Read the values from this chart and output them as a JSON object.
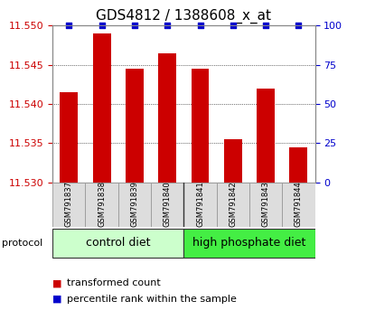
{
  "title": "GDS4812 / 1388608_x_at",
  "samples": [
    "GSM791837",
    "GSM791838",
    "GSM791839",
    "GSM791840",
    "GSM791841",
    "GSM791842",
    "GSM791843",
    "GSM791844"
  ],
  "transformed_counts": [
    11.5415,
    11.549,
    11.5445,
    11.5465,
    11.5445,
    11.5355,
    11.542,
    11.5345
  ],
  "percentile_ranks": [
    100,
    100,
    100,
    100,
    100,
    100,
    100,
    100
  ],
  "ylim_left": [
    11.53,
    11.55
  ],
  "yticks_left": [
    11.53,
    11.535,
    11.54,
    11.545,
    11.55
  ],
  "yticks_right": [
    0,
    25,
    50,
    75,
    100
  ],
  "ylim_right": [
    0,
    100
  ],
  "bar_color": "#cc0000",
  "dot_color": "#0000cc",
  "groups": [
    {
      "label": "control diet",
      "indices": [
        0,
        1,
        2,
        3
      ],
      "color": "#ccffcc"
    },
    {
      "label": "high phosphate diet",
      "indices": [
        4,
        5,
        6,
        7
      ],
      "color": "#44ee44"
    }
  ],
  "protocol_label": "protocol",
  "legend_bar_label": "transformed count",
  "legend_dot_label": "percentile rank within the sample",
  "background_color": "#ffffff",
  "plot_bg_color": "#ffffff",
  "left_axis_color": "#cc0000",
  "right_axis_color": "#0000cc",
  "title_fontsize": 11,
  "tick_fontsize": 8,
  "sample_label_fontsize": 6,
  "group_fontsize": 9,
  "legend_fontsize": 8
}
